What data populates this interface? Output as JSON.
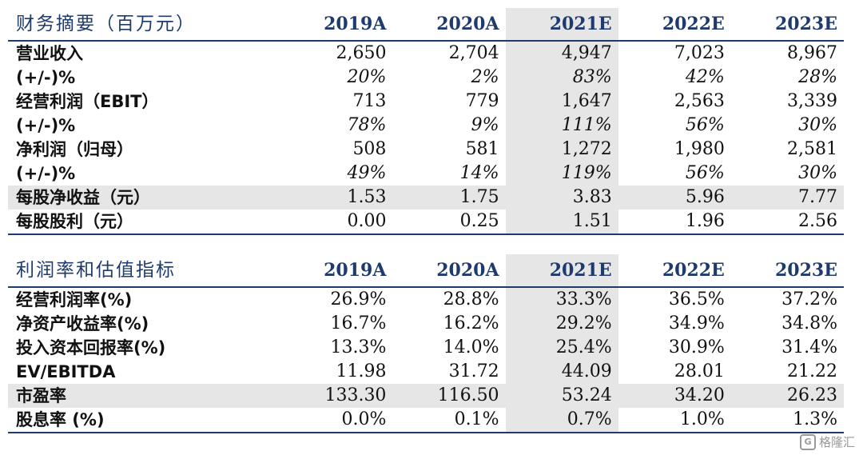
{
  "table1": {
    "header": [
      "财务摘要（百万元）",
      "2019A",
      "2020A",
      "2021E",
      "2022E",
      "2023E"
    ],
    "rows": [
      {
        "label": "营业收入",
        "values": [
          "2,650",
          "2,704",
          "4,947",
          "7,023",
          "8,967"
        ],
        "type": "normal"
      },
      {
        "label": "(+/-)%",
        "values": [
          "20%",
          "2%",
          "83%",
          "42%",
          "28%"
        ],
        "type": "pct"
      },
      {
        "label": "经营利润（EBIT）",
        "values": [
          "713",
          "779",
          "1,647",
          "2,563",
          "3,339"
        ],
        "type": "normal"
      },
      {
        "label": "(+/-)%",
        "values": [
          "78%",
          "9%",
          "111%",
          "56%",
          "30%"
        ],
        "type": "pct"
      },
      {
        "label": "净利润（归母）",
        "values": [
          "508",
          "581",
          "1,272",
          "1,980",
          "2,581"
        ],
        "type": "normal"
      },
      {
        "label": "(+/-)%",
        "values": [
          "49%",
          "14%",
          "119%",
          "56%",
          "30%"
        ],
        "type": "pct"
      },
      {
        "label": "每股净收益（元）",
        "values": [
          "1.53",
          "1.75",
          "3.83",
          "5.96",
          "7.77"
        ],
        "type": "shade"
      },
      {
        "label": "每股股利（元）",
        "values": [
          "0.00",
          "0.25",
          "1.51",
          "1.96",
          "2.56"
        ],
        "type": "normal"
      }
    ]
  },
  "table2": {
    "header": [
      "利润率和估值指标",
      "2019A",
      "2020A",
      "2021E",
      "2022E",
      "2023E"
    ],
    "rows": [
      {
        "label": "经营利润率(%)",
        "values": [
          "26.9%",
          "28.8%",
          "33.3%",
          "36.5%",
          "37.2%"
        ],
        "type": "normal"
      },
      {
        "label": "净资产收益率(%)",
        "values": [
          "16.7%",
          "16.2%",
          "29.2%",
          "34.9%",
          "34.8%"
        ],
        "type": "normal"
      },
      {
        "label": "投入资本回报率(%)",
        "values": [
          "13.3%",
          "14.0%",
          "25.4%",
          "30.9%",
          "31.4%"
        ],
        "type": "normal"
      },
      {
        "label": "EV/EBITDA",
        "values": [
          "11.98",
          "31.72",
          "44.09",
          "28.01",
          "21.22"
        ],
        "type": "normal"
      },
      {
        "label": "市盈率",
        "values": [
          "133.30",
          "116.50",
          "53.24",
          "34.20",
          "26.23"
        ],
        "type": "shade"
      },
      {
        "label": "股息率 (%)",
        "values": [
          "0.0%",
          "0.1%",
          "0.7%",
          "1.0%",
          "1.3%"
        ],
        "type": "normal"
      }
    ]
  },
  "watermark": {
    "icon": "g-logo-icon",
    "text": "格隆汇"
  }
}
